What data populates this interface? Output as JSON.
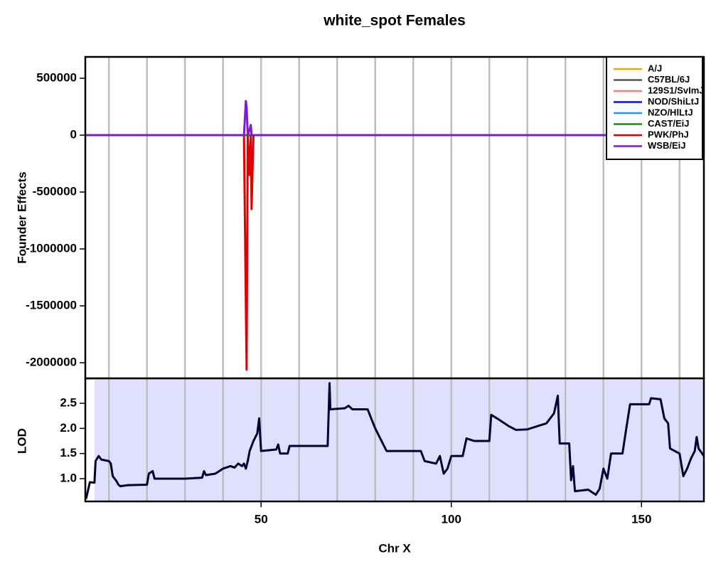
{
  "chart_data": [
    {
      "type": "line",
      "title": "white_spot Females",
      "ylabel": "Founder Effects",
      "x": [
        3.8,
        45.5,
        46,
        46.2,
        46.5,
        47,
        47.3,
        47.5,
        48,
        166.4
      ],
      "series": [
        {
          "name": "A/J",
          "color": "#f0a800",
          "values": [
            0,
            0,
            0,
            0,
            0,
            0,
            0,
            0,
            0,
            0
          ]
        },
        {
          "name": "C57BL/6J",
          "color": "#555555",
          "values": [
            0,
            0,
            0,
            0,
            0,
            0,
            0,
            0,
            0,
            0
          ]
        },
        {
          "name": "129S1/SvImJ",
          "color": "#f08080",
          "values": [
            0,
            0,
            0,
            0,
            0,
            0,
            0,
            0,
            0,
            0
          ]
        },
        {
          "name": "NOD/ShiLtJ",
          "color": "#1010c8",
          "values": [
            0,
            0,
            0,
            0,
            0,
            0,
            0,
            0,
            0,
            0
          ]
        },
        {
          "name": "NZO/HlLtJ",
          "color": "#1e90ff",
          "values": [
            0,
            0,
            0,
            0,
            0,
            0,
            0,
            0,
            0,
            0
          ]
        },
        {
          "name": "CAST/EiJ",
          "color": "#109010",
          "values": [
            0,
            0,
            0,
            0,
            0,
            0,
            0,
            0,
            0,
            0
          ]
        },
        {
          "name": "PWK/PhJ",
          "color": "#e00000",
          "values": [
            0,
            0,
            -1500000,
            -2060000,
            0,
            -350000,
            0,
            -650000,
            0,
            0
          ]
        },
        {
          "name": "WSB/EiJ",
          "color": "#7a1fc8",
          "values": [
            0,
            0,
            300000,
            250000,
            0,
            50000,
            90000,
            0,
            0,
            0
          ]
        }
      ],
      "xlim": [
        3.8,
        166.4
      ],
      "ylim": [
        -2137500,
        687500
      ],
      "yticks": [
        500000,
        0,
        -500000,
        -1000000,
        -1500000,
        -2000000
      ],
      "xgrid": [
        10,
        20,
        30,
        40,
        50,
        60,
        70,
        80,
        90,
        100,
        110,
        120,
        130,
        140,
        150,
        160
      ],
      "legend": "top-right"
    },
    {
      "type": "line",
      "xlabel": "Chr X",
      "ylabel": "LOD",
      "x": [
        4.0,
        5.0,
        6.2,
        6.5,
        7.3,
        8,
        10,
        10.5,
        11,
        12,
        12.5,
        13,
        15,
        20,
        20.5,
        21.5,
        22,
        30,
        34.5,
        35,
        35.5,
        38,
        40,
        42,
        43,
        44,
        45,
        45.5,
        46,
        46.5,
        47,
        48,
        49,
        49.5,
        50,
        54,
        54.5,
        55,
        57,
        57.5,
        62,
        67.5,
        68,
        68.2,
        72,
        73,
        74,
        78,
        80,
        83,
        92,
        93,
        96,
        97,
        98,
        99,
        100,
        103,
        104,
        106,
        110,
        110.5,
        112,
        115,
        117,
        120,
        125,
        127,
        128,
        128.5,
        131,
        131.5,
        132,
        132.5,
        136,
        138,
        139,
        140,
        141,
        142,
        145,
        146,
        147,
        152,
        152.5,
        155,
        156,
        157,
        157.5,
        160,
        161,
        162,
        163,
        164,
        164.5,
        165,
        166.4
      ],
      "series": [
        {
          "color": "#000033",
          "values": [
            0.6,
            0.93,
            0.92,
            1.35,
            1.45,
            1.38,
            1.35,
            1.3,
            1.05,
            0.95,
            0.88,
            0.85,
            0.87,
            0.88,
            1.1,
            1.15,
            1.0,
            1.0,
            1.02,
            1.15,
            1.07,
            1.1,
            1.2,
            1.25,
            1.22,
            1.3,
            1.25,
            1.3,
            1.2,
            1.35,
            1.55,
            1.75,
            1.9,
            2.2,
            1.55,
            1.58,
            1.68,
            1.5,
            1.5,
            1.65,
            1.65,
            1.65,
            2.9,
            2.38,
            2.4,
            2.45,
            2.38,
            2.38,
            2.0,
            1.55,
            1.55,
            1.35,
            1.3,
            1.45,
            1.1,
            1.2,
            1.45,
            1.45,
            1.8,
            1.75,
            1.75,
            2.27,
            2.2,
            2.05,
            1.97,
            1.98,
            2.1,
            2.3,
            2.65,
            1.7,
            1.7,
            0.97,
            1.25,
            0.75,
            0.78,
            0.68,
            0.8,
            1.2,
            1.0,
            1.5,
            1.5,
            2.0,
            2.48,
            2.48,
            2.6,
            2.58,
            2.2,
            2.1,
            1.6,
            1.5,
            1.05,
            1.2,
            1.4,
            1.55,
            1.83,
            1.6,
            1.45
          ]
        }
      ],
      "shade": {
        "range": [
          6.2,
          166.4
        ],
        "color": "#e0e0fe"
      },
      "xlim": [
        3.8,
        166.4
      ],
      "ylim": [
        0.547,
        2.995
      ],
      "yticks": [
        {
          "value": 1,
          "label": "1.0"
        },
        1.5,
        {
          "value": 2,
          "label": "2.0"
        },
        2.5
      ],
      "xticks": [
        50,
        100,
        150
      ],
      "xgrid": [
        10,
        20,
        30,
        40,
        50,
        60,
        70,
        80,
        90,
        100,
        110,
        120,
        130,
        140,
        150,
        160
      ]
    }
  ]
}
